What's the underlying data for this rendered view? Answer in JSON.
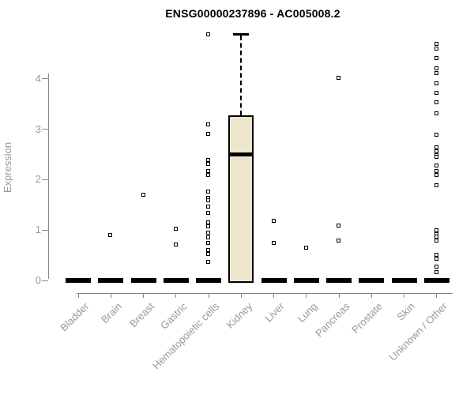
{
  "page": {
    "background": "#ffffff"
  },
  "chart_data": {
    "type": "boxplot",
    "title": "ENSG00000237896 - AC005008.2",
    "ylabel": "Expression",
    "xlabel": "",
    "grid": false,
    "legend": "none",
    "yticks": [
      0,
      1,
      2,
      3,
      4
    ],
    "ylim": [
      0,
      4.95
    ],
    "categories": [
      "Bladder",
      "Brain",
      "Breast",
      "Gastric",
      "Hematopoietic cells",
      "Kidney",
      "Liver",
      "Lung",
      "Pancreas",
      "Prostate",
      "Skin",
      "Unknown / Other"
    ],
    "boxes": [
      {
        "category": "Bladder",
        "q1": 0,
        "median": 0,
        "q3": 0,
        "whisker_low": 0,
        "whisker_high": 0,
        "outliers": []
      },
      {
        "category": "Brain",
        "q1": 0,
        "median": 0,
        "q3": 0,
        "whisker_low": 0,
        "whisker_high": 0,
        "outliers": [
          0.89
        ]
      },
      {
        "category": "Breast",
        "q1": 0,
        "median": 0,
        "q3": 0,
        "whisker_low": 0,
        "whisker_high": 0,
        "outliers": [
          1.69
        ]
      },
      {
        "category": "Gastric",
        "q1": 0,
        "median": 0,
        "q3": 0,
        "whisker_low": 0,
        "whisker_high": 0,
        "outliers": [
          1.02,
          0.7
        ]
      },
      {
        "category": "Hematopoietic cells",
        "q1": 0,
        "median": 0,
        "q3": 0,
        "whisker_low": 0,
        "whisker_high": 0,
        "outliers": [
          4.88,
          3.08,
          2.9,
          2.38,
          2.3,
          2.16,
          2.09,
          1.75,
          1.63,
          1.58,
          1.46,
          1.33,
          1.14,
          1.06,
          0.94,
          0.84,
          0.73,
          0.6,
          0.52,
          0.36
        ]
      },
      {
        "category": "Kidney",
        "q1": 0,
        "median": 2.5,
        "q3": 3.27,
        "whisker_low": 0,
        "whisker_high": 4.89,
        "outliers": []
      },
      {
        "category": "Liver",
        "q1": 0,
        "median": 0,
        "q3": 0,
        "whisker_low": 0,
        "whisker_high": 0,
        "outliers": [
          1.17,
          0.73
        ]
      },
      {
        "category": "Lung",
        "q1": 0,
        "median": 0,
        "q3": 0,
        "whisker_low": 0,
        "whisker_high": 0,
        "outliers": [
          0.64
        ]
      },
      {
        "category": "Pancreas",
        "q1": 0,
        "median": 0,
        "q3": 0,
        "whisker_low": 0,
        "whisker_high": 0,
        "outliers": [
          4.01,
          1.08,
          0.78
        ]
      },
      {
        "category": "Prostate",
        "q1": 0,
        "median": 0,
        "q3": 0,
        "whisker_low": 0,
        "whisker_high": 0,
        "outliers": []
      },
      {
        "category": "Skin",
        "q1": 0,
        "median": 0,
        "q3": 0,
        "whisker_low": 0,
        "whisker_high": 0,
        "outliers": []
      },
      {
        "category": "Unknown / Other",
        "q1": 0,
        "median": 0,
        "q3": 0,
        "whisker_low": 0,
        "whisker_high": 0,
        "outliers": [
          4.69,
          4.6,
          4.41,
          4.2,
          4.1,
          3.91,
          3.72,
          3.52,
          3.31,
          2.89,
          2.63,
          2.55,
          2.47,
          2.45,
          2.27,
          2.16,
          2.08,
          1.88,
          0.98,
          0.91,
          0.86,
          0.78,
          0.5,
          0.42,
          0.27,
          0.16
        ]
      }
    ],
    "colors": {
      "box_fill": "#ECE7CC",
      "box_border": "#000000",
      "median": "#000000",
      "zero_bar": "#000000",
      "outlier_border": "#000000",
      "outlier_fill": "#ffffff",
      "axis": "#888888",
      "tick_label": "#999999",
      "title": "#000000",
      "background": "#ffffff"
    }
  }
}
